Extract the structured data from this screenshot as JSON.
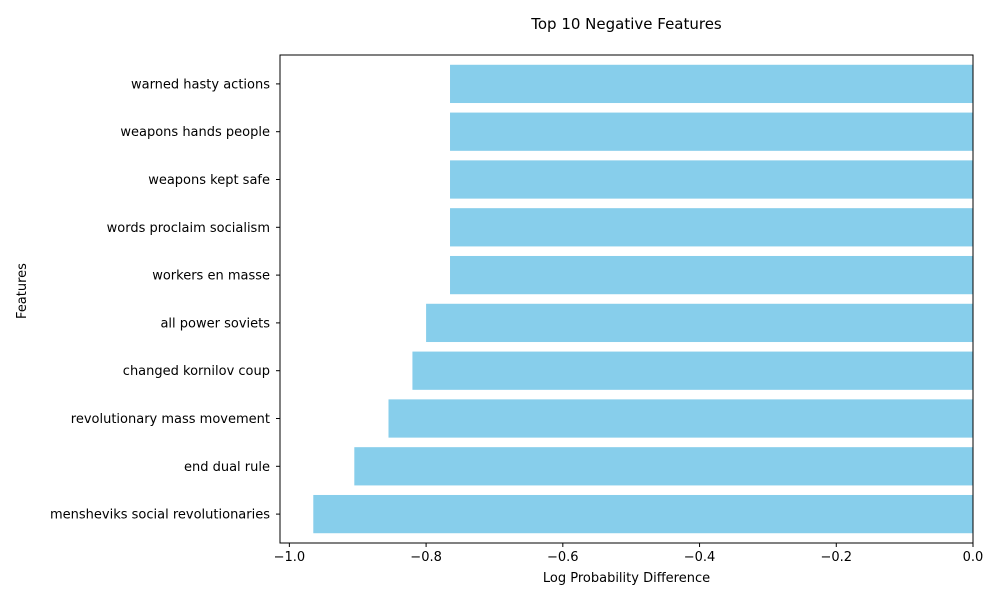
{
  "chart_data": {
    "type": "bar",
    "orientation": "horizontal",
    "title": "Top 10 Negative Features",
    "xlabel": "Log Probability Difference",
    "ylabel": "Features",
    "xlim": [
      -1.0137,
      0.0
    ],
    "xticks": [
      -1.0,
      -0.8,
      -0.6,
      -0.4,
      -0.2,
      0.0
    ],
    "xtick_labels": [
      "−1.0",
      "−0.8",
      "−0.6",
      "−0.4",
      "−0.2",
      "0.0"
    ],
    "grid": false,
    "legend": "none",
    "bar_color": "#87CEEB",
    "categories": [
      "warned hasty actions",
      "weapons hands people",
      "weapons kept safe",
      "words proclaim socialism",
      "workers en masse",
      "all power soviets",
      "changed kornilov coup",
      "revolutionary mass movement",
      "end dual rule",
      "mensheviks social revolutionaries"
    ],
    "values": [
      -0.765,
      -0.765,
      -0.765,
      -0.765,
      -0.765,
      -0.8,
      -0.82,
      -0.855,
      -0.905,
      -0.965
    ]
  }
}
